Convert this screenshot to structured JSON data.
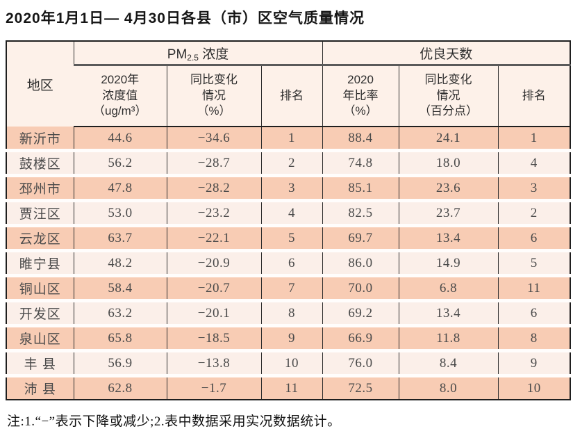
{
  "page": {
    "title": "2020年1月1日— 4月30日各县（市）区空气质量情况",
    "note": "注:1.“−”表示下降或减少;2.表中数据采用实况数据统计。"
  },
  "colors": {
    "row_dark": "#f8ccb4",
    "row_light": "#fbefe9",
    "header_bg": "#fdf1e9",
    "border": "#1f1f1f"
  },
  "table": {
    "corner_header": "地区",
    "groups": {
      "pm": {
        "prefix": "PM",
        "sub": "2.5",
        "suffix": " 浓度"
      },
      "days": {
        "label": "优良天数"
      }
    },
    "subheaders": {
      "pm_value": "2020年\n浓度值\n（ug/m³）",
      "pm_change": "同比变化\n情况\n（%）",
      "pm_rank": "排名",
      "days_ratio": "2020\n年比率\n（%）",
      "days_change": "同比变化\n情况\n（百分点）",
      "days_rank": "排名"
    },
    "rows": [
      [
        "新沂市",
        "44.6",
        "−34.6",
        "1",
        "88.4",
        "24.1",
        "1"
      ],
      [
        "鼓楼区",
        "56.2",
        "−28.7",
        "2",
        "74.8",
        "18.0",
        "4"
      ],
      [
        "邳州市",
        "47.8",
        "−28.2",
        "3",
        "85.1",
        "23.6",
        "3"
      ],
      [
        "贾汪区",
        "53.0",
        "−23.2",
        "4",
        "82.5",
        "23.7",
        "2"
      ],
      [
        "云龙区",
        "63.7",
        "−22.1",
        "5",
        "69.7",
        "13.4",
        "6"
      ],
      [
        "睢宁县",
        "48.2",
        "−20.9",
        "6",
        "86.0",
        "14.9",
        "5"
      ],
      [
        "铜山区",
        "58.4",
        "−20.7",
        "7",
        "70.0",
        "6.8",
        "11"
      ],
      [
        "开发区",
        "63.2",
        "−20.1",
        "8",
        "69.2",
        "13.4",
        "6"
      ],
      [
        "泉山区",
        "65.8",
        "−18.5",
        "9",
        "66.9",
        "11.8",
        "8"
      ],
      [
        "丰 县",
        "56.9",
        "−13.8",
        "10",
        "76.0",
        "8.4",
        "9"
      ],
      [
        "沛 县",
        "62.8",
        "−1.7",
        "11",
        "72.5",
        "8.0",
        "10"
      ]
    ]
  }
}
